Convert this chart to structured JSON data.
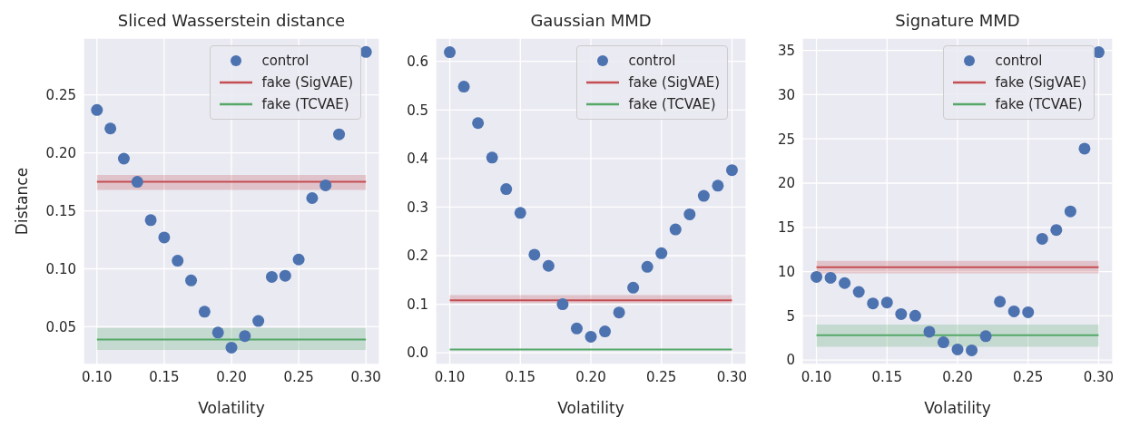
{
  "chart_data": [
    {
      "type": "scatter",
      "title": "Sliced Wasserstein distance",
      "xlabel": "Volatility",
      "ylabel": "Distance",
      "x": [
        0.1,
        0.11,
        0.12,
        0.13,
        0.14,
        0.15,
        0.16,
        0.17,
        0.18,
        0.19,
        0.2,
        0.21,
        0.22,
        0.23,
        0.24,
        0.25,
        0.26,
        0.27,
        0.28,
        0.29,
        0.3
      ],
      "series": [
        {
          "name": "control",
          "color": "#4c72b0",
          "values": [
            0.237,
            0.221,
            0.195,
            0.175,
            0.142,
            0.127,
            0.107,
            0.09,
            0.063,
            0.045,
            0.032,
            0.042,
            0.055,
            0.093,
            0.094,
            0.108,
            0.161,
            0.172,
            0.216,
            null,
            0.287
          ]
        }
      ],
      "ref_lines": [
        {
          "axis": "y",
          "value": 0.175,
          "label": "fake (SigVAE)",
          "color": "#c44e52"
        },
        {
          "axis": "y",
          "value": 0.039,
          "label": "fake (TCVAE)",
          "color": "#55a868"
        }
      ],
      "bands": [
        {
          "axis": "y",
          "from": 0.168,
          "to": 0.181,
          "color": "#c44e52"
        },
        {
          "axis": "y",
          "from": 0.03,
          "to": 0.049,
          "color": "#55a868"
        }
      ],
      "xlim": [
        0.09,
        0.31
      ],
      "xticks": [
        {
          "value": 0.1,
          "label": "0.10"
        },
        {
          "value": 0.15,
          "label": "0.15"
        },
        {
          "value": 0.2,
          "label": "0.20"
        },
        {
          "value": 0.25,
          "label": "0.25"
        },
        {
          "value": 0.3,
          "label": "0.30"
        }
      ],
      "ylim": [
        0.0175,
        0.299
      ],
      "yticks": [
        {
          "value": 0.05,
          "label": "0.05"
        },
        {
          "value": 0.1,
          "label": "0.10"
        },
        {
          "value": 0.15,
          "label": "0.15"
        },
        {
          "value": 0.2,
          "label": "0.20"
        },
        {
          "value": 0.25,
          "label": "0.25"
        }
      ],
      "grid": true,
      "legend": "top right",
      "marker": "circle"
    },
    {
      "type": "scatter",
      "title": "Gaussian MMD",
      "xlabel": "Volatility",
      "x": [
        0.1,
        0.11,
        0.12,
        0.13,
        0.14,
        0.15,
        0.16,
        0.17,
        0.18,
        0.19,
        0.2,
        0.21,
        0.22,
        0.23,
        0.24,
        0.25,
        0.26,
        0.27,
        0.28,
        0.29,
        0.3
      ],
      "series": [
        {
          "name": "control",
          "color": "#4c72b0",
          "values": [
            0.619,
            0.548,
            0.473,
            0.402,
            0.337,
            0.288,
            0.202,
            0.179,
            0.1,
            0.05,
            0.033,
            0.044,
            0.083,
            0.134,
            0.177,
            0.205,
            0.254,
            0.285,
            0.323,
            0.344,
            0.376
          ]
        }
      ],
      "ref_lines": [
        {
          "axis": "y",
          "value": 0.108,
          "label": "fake (SigVAE)",
          "color": "#c44e52"
        },
        {
          "axis": "y",
          "value": 0.007,
          "label": "fake (TCVAE)",
          "color": "#55a868"
        }
      ],
      "bands": [
        {
          "axis": "y",
          "from": 0.102,
          "to": 0.119,
          "color": "#c44e52"
        }
      ],
      "xlim": [
        0.09,
        0.31
      ],
      "xticks": [
        {
          "value": 0.1,
          "label": "0.10"
        },
        {
          "value": 0.15,
          "label": "0.15"
        },
        {
          "value": 0.2,
          "label": "0.20"
        },
        {
          "value": 0.25,
          "label": "0.25"
        },
        {
          "value": 0.3,
          "label": "0.30"
        }
      ],
      "ylim": [
        -0.024,
        0.648
      ],
      "yticks": [
        {
          "value": 0,
          "label": "0.0"
        },
        {
          "value": 0.1,
          "label": "0.1"
        },
        {
          "value": 0.2,
          "label": "0.2"
        },
        {
          "value": 0.3,
          "label": "0.3"
        },
        {
          "value": 0.4,
          "label": "0.4"
        },
        {
          "value": 0.5,
          "label": "0.5"
        },
        {
          "value": 0.6,
          "label": "0.6"
        }
      ],
      "grid": true,
      "legend": "top right",
      "marker": "circle"
    },
    {
      "type": "scatter",
      "title": "Signature MMD",
      "xlabel": "Volatility",
      "x": [
        0.1,
        0.11,
        0.12,
        0.13,
        0.14,
        0.15,
        0.16,
        0.17,
        0.18,
        0.19,
        0.2,
        0.21,
        0.22,
        0.23,
        0.24,
        0.25,
        0.26,
        0.27,
        0.28,
        0.29,
        0.3
      ],
      "series": [
        {
          "name": "control",
          "color": "#4c72b0",
          "values": [
            9.4,
            9.3,
            8.7,
            7.7,
            6.4,
            6.5,
            5.2,
            5.0,
            3.2,
            2.0,
            1.2,
            1.1,
            2.7,
            6.6,
            5.5,
            5.4,
            13.7,
            14.7,
            16.8,
            23.9,
            34.8
          ]
        }
      ],
      "ref_lines": [
        {
          "axis": "y",
          "value": 10.5,
          "label": "fake (SigVAE)",
          "color": "#c44e52"
        },
        {
          "axis": "y",
          "value": 2.8,
          "label": "fake (TCVAE)",
          "color": "#55a868"
        }
      ],
      "bands": [
        {
          "axis": "y",
          "from": 9.8,
          "to": 11.2,
          "color": "#c44e52"
        },
        {
          "axis": "y",
          "from": 1.5,
          "to": 4.0,
          "color": "#55a868"
        }
      ],
      "xlim": [
        0.09,
        0.31
      ],
      "xticks": [
        {
          "value": 0.1,
          "label": "0.10"
        },
        {
          "value": 0.15,
          "label": "0.15"
        },
        {
          "value": 0.2,
          "label": "0.20"
        },
        {
          "value": 0.25,
          "label": "0.25"
        },
        {
          "value": 0.3,
          "label": "0.30"
        }
      ],
      "ylim": [
        -0.5,
        36.4
      ],
      "yticks": [
        0,
        5,
        10,
        15,
        20,
        25,
        30,
        35
      ],
      "grid": true,
      "legend": "top right",
      "marker": "circle"
    }
  ]
}
